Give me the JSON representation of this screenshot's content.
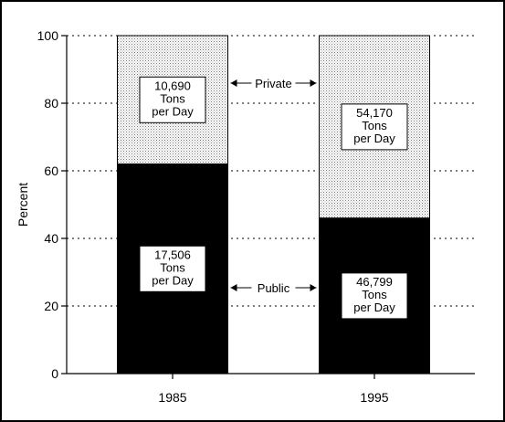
{
  "chart_data": {
    "type": "bar",
    "stacked": true,
    "categories": [
      "1985",
      "1995"
    ],
    "ylabel": "Percent",
    "ylim": [
      0,
      100
    ],
    "yticks": [
      0,
      20,
      40,
      60,
      80,
      100
    ],
    "grid": "horizontal dotted",
    "series": [
      {
        "name": "Public",
        "values": [
          62,
          46
        ],
        "color": "#000000"
      },
      {
        "name": "Private",
        "values": [
          38,
          54
        ],
        "color": "#d4d4d4",
        "pattern": "stipple"
      }
    ],
    "annotations": {
      "public": [
        {
          "line1": "17,506",
          "line2": "Tons",
          "line3": "per Day"
        },
        {
          "line1": "46,799",
          "line2": "Tons",
          "line3": "per Day"
        }
      ],
      "private": [
        {
          "line1": "10,690",
          "line2": "Tons",
          "line3": "per Day"
        },
        {
          "line1": "54,170",
          "line2": "Tons",
          "line3": "per Day"
        }
      ]
    },
    "arrow_labels": {
      "private": "Private",
      "public": "Public"
    }
  }
}
